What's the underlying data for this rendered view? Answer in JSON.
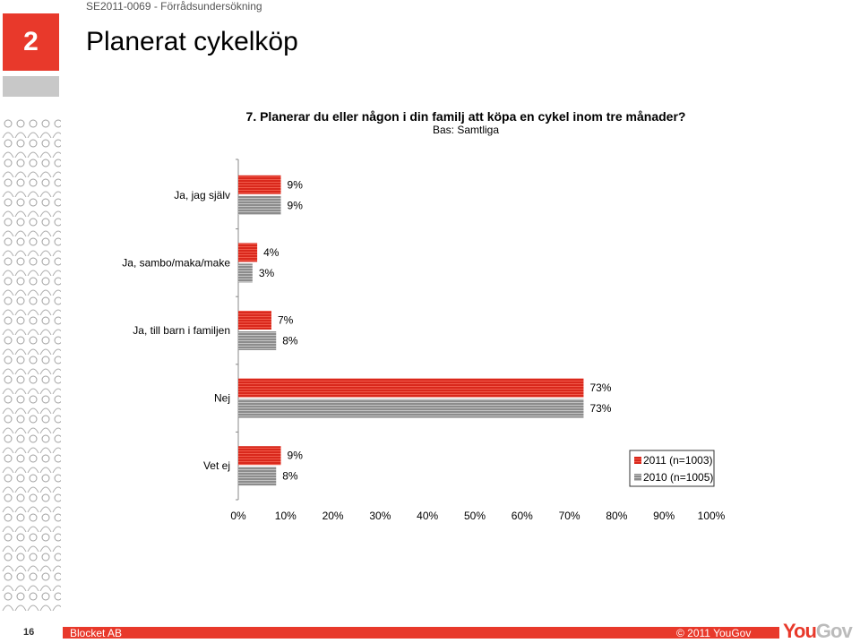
{
  "header": {
    "code": "SE2011-0069 - Förrådsundersökning",
    "section_number": "2",
    "title": "Planerat cykelköp"
  },
  "footer": {
    "page": "16",
    "left": "Blocket AB",
    "right": "© 2011 YouGov",
    "logo_you": "You",
    "logo_gov": "Gov"
  },
  "colors": {
    "accent": "#e8392b",
    "series2011": "#d9281c",
    "series2010": "#8c8c8c"
  },
  "chart_data": {
    "type": "bar",
    "orientation": "horizontal",
    "title": "7. Planerar du eller någon i din familj att köpa en cykel inom tre månader?",
    "subtitle": "Bas: Samtliga",
    "categories": [
      "Ja, jag själv",
      "Ja, sambo/maka/make",
      "Ja, till barn i familjen",
      "Nej",
      "Vet ej"
    ],
    "series": [
      {
        "name": "2011 (n=1003)",
        "values": [
          9,
          4,
          7,
          73,
          9
        ],
        "labels": [
          "9%",
          "4%",
          "7%",
          "73%",
          "9%"
        ]
      },
      {
        "name": "2010 (n=1005)",
        "values": [
          9,
          3,
          8,
          73,
          8
        ],
        "labels": [
          "9%",
          "3%",
          "8%",
          "73%",
          "8%"
        ]
      }
    ],
    "xlim": [
      0,
      100
    ],
    "xticks": [
      "0%",
      "10%",
      "20%",
      "30%",
      "40%",
      "50%",
      "60%",
      "70%",
      "80%",
      "90%",
      "100%"
    ],
    "legend_position": "bottom-right",
    "grid": false
  }
}
